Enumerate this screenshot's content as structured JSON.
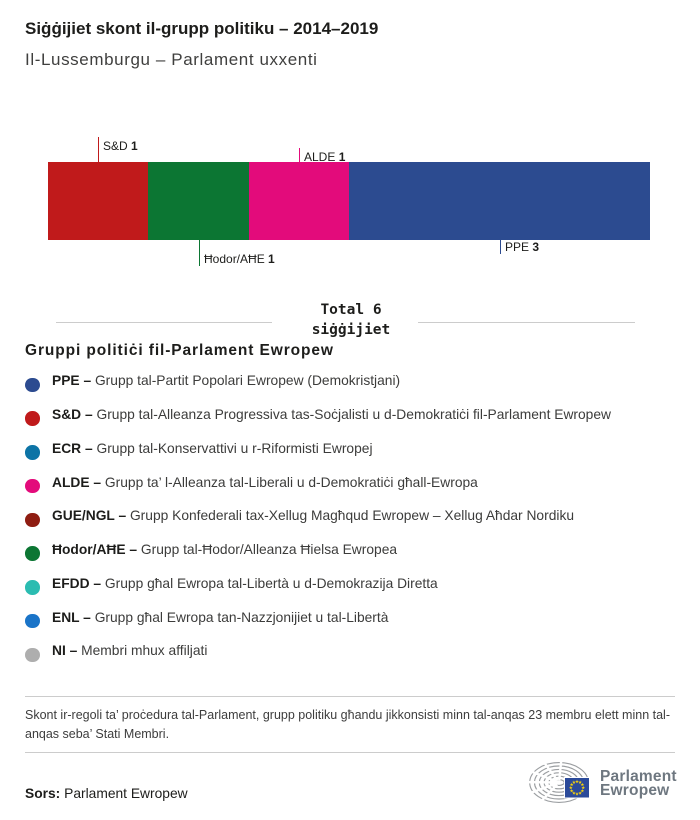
{
  "header": {
    "title": "Siġġijiet skont il-grupp politiku – 2014–2019",
    "subtitle": "Il-Lussemburgu – Parlament uxxenti"
  },
  "chart_data": {
    "type": "bar",
    "title": "Siġġijiet skont il-grupp politiku – 2014–2019",
    "subtitle": "Il-Lussemburgu – Parlament uxxenti",
    "total_seats": 6,
    "total_label_line1": "Total 6",
    "total_label_line2": "siġġijiet",
    "segments": [
      {
        "group": "S&D",
        "seats": 1,
        "color": "#c01a1b",
        "callout": "above",
        "tick_len": 25
      },
      {
        "group": "Ħodor/AĦE",
        "seats": 1,
        "color": "#0c7633",
        "callout": "below",
        "tick_len": 26
      },
      {
        "group": "ALDE",
        "seats": 1,
        "color": "#e30b7b",
        "callout": "above",
        "tick_len": 14
      },
      {
        "group": "PPE",
        "seats": 3,
        "color": "#2c4b90",
        "callout": "below",
        "tick_len": 14
      }
    ]
  },
  "legend": {
    "heading": "Gruppi politiċi fil-Parlament Ewropew",
    "separator": "–",
    "items": [
      {
        "abbr": "PPE",
        "desc": "Grupp tal-Partit Popolari Ewropew (Demokristjani)",
        "color": "#2c4b90"
      },
      {
        "abbr": "S&D",
        "desc": "Grupp tal-Alleanza Progressiva tas-Soċjalisti u d-Demokratiċi fil-Parlament Ewropew",
        "color": "#c01a1b"
      },
      {
        "abbr": "ECR",
        "desc": "Grupp tal-Konservattivi u r-Riformisti Ewropej",
        "color": "#0d74a6"
      },
      {
        "abbr": "ALDE",
        "desc": "Grupp ta’ l-Alleanza tal-Liberali u d-Demokratiċi għall-Ewropa",
        "color": "#e30b7b"
      },
      {
        "abbr": "GUE/NGL",
        "desc": "Grupp Konfederali tax-Xellug Magħqud Ewropew – Xellug Aħdar Nordiku",
        "color": "#8f1d12"
      },
      {
        "abbr": "Ħodor/AĦE",
        "desc": "Grupp tal-Ħodor/Alleanza Ħielsa Ewropea",
        "color": "#0c7633"
      },
      {
        "abbr": "EFDD",
        "desc": "Grupp għal Ewropa tal-Libertà u d-Demokrazija Diretta",
        "color": "#2bbcb1"
      },
      {
        "abbr": "ENL",
        "desc": "Grupp għal Ewropa tan-Nazzjonijiet u tal-Libertà",
        "color": "#1a74c8"
      },
      {
        "abbr": "NI",
        "desc": "Membri mhux affiljati",
        "color": "#aeaeae"
      }
    ]
  },
  "footer": {
    "note": "Skont ir-regoli ta’ proċedura tal-Parlament, grupp politiku għandu jikkonsisti minn tal-anqas 23 membru elett minn tal-anqas seba’ Stati Membri.",
    "source_label": "Sors:",
    "source_value": "Parlament Ewropew",
    "logo_line1": "Parlament",
    "logo_line2": "Ewropew"
  }
}
